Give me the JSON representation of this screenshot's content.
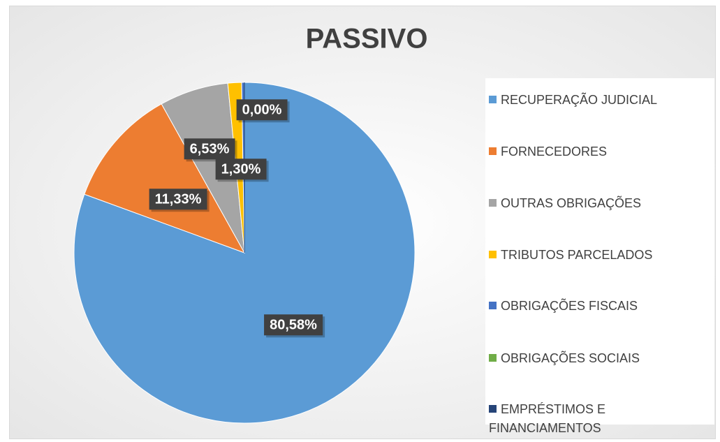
{
  "chart_data": {
    "type": "pie",
    "title": "PASSIVO",
    "categories": [
      "RECUPERAÇÃO JUDICIAL",
      "FORNECEDORES",
      "OUTRAS OBRIGAÇÕES",
      "TRIBUTOS PARCELADOS",
      "OBRIGAÇÕES FISCAIS",
      "OBRIGAÇÕES SOCIAIS",
      "EMPRÉSTIMOS E FINANCIAMENTOS"
    ],
    "values": [
      80.58,
      11.33,
      6.53,
      1.3,
      0.26,
      0,
      0
    ],
    "value_labels": [
      "80,58%",
      "11,33%",
      "6,53%",
      "1,30%",
      null,
      "0,00%",
      null
    ],
    "colors": [
      "#5b9bd5",
      "#ed7d31",
      "#a5a5a5",
      "#ffc000",
      "#4472c4",
      "#70ad47",
      "#264478"
    ],
    "legend": "right"
  }
}
